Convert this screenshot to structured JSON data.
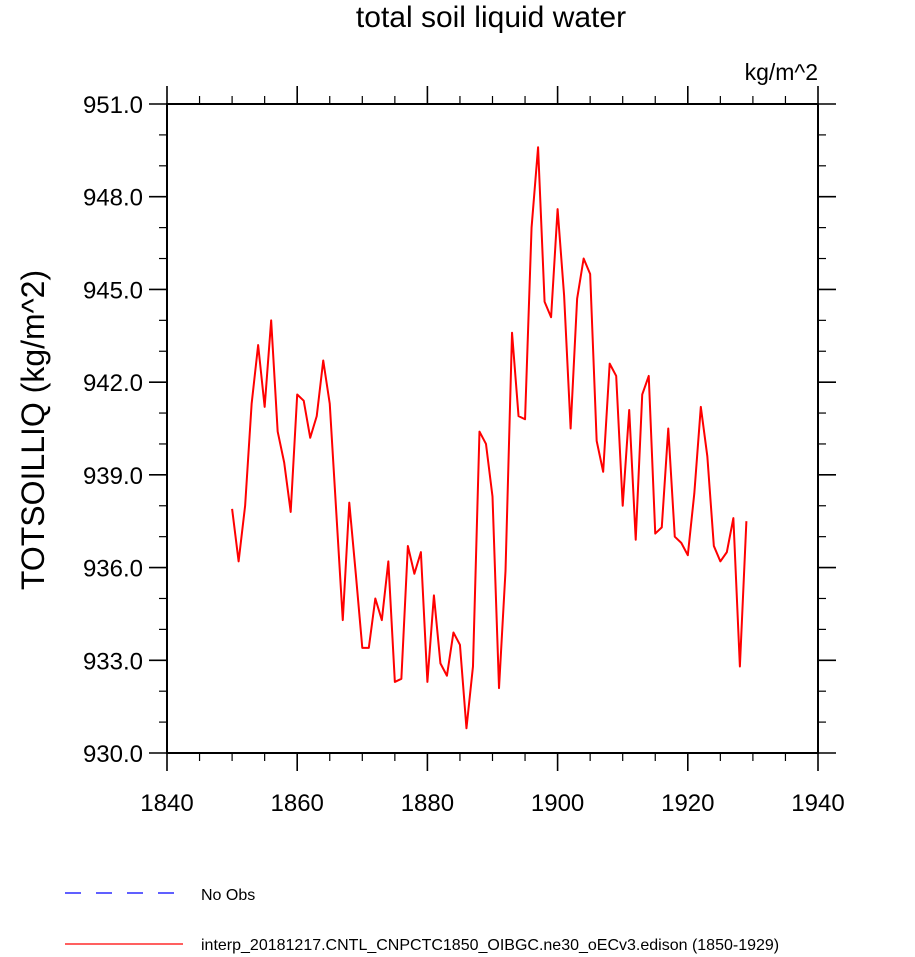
{
  "chart_data": {
    "type": "line",
    "title": "total soil liquid water",
    "units_label": "kg/m^2",
    "ylabel": "TOTSOILLIQ  (kg/m^2)",
    "xlabel": "",
    "xlim": [
      1840,
      1940
    ],
    "ylim": [
      930,
      951
    ],
    "xticks": [
      1840,
      1860,
      1880,
      1900,
      1920,
      1940
    ],
    "yticks": [
      930,
      933,
      936,
      939,
      942,
      945,
      948,
      951
    ],
    "ytick_labels": [
      "930.0",
      "933.0",
      "936.0",
      "939.0",
      "942.0",
      "945.0",
      "948.0",
      "951.0"
    ],
    "grid": false,
    "legend_position": "bottom-left",
    "series": [
      {
        "name": "interp_20181217.CNTL_CNPCTC1850_OIBGC.ne30_oECv3.edison (1850-1929)",
        "color": "#ff0000",
        "style": "solid",
        "x": [
          1850,
          1851,
          1852,
          1853,
          1854,
          1855,
          1856,
          1857,
          1858,
          1859,
          1860,
          1861,
          1862,
          1863,
          1864,
          1865,
          1866,
          1867,
          1868,
          1869,
          1870,
          1871,
          1872,
          1873,
          1874,
          1875,
          1876,
          1877,
          1878,
          1879,
          1880,
          1881,
          1882,
          1883,
          1884,
          1885,
          1886,
          1887,
          1888,
          1889,
          1890,
          1891,
          1892,
          1893,
          1894,
          1895,
          1896,
          1897,
          1898,
          1899,
          1900,
          1901,
          1902,
          1903,
          1904,
          1905,
          1906,
          1907,
          1908,
          1909,
          1910,
          1911,
          1912,
          1913,
          1914,
          1915,
          1916,
          1917,
          1918,
          1919,
          1920,
          1921,
          1922,
          1923,
          1924,
          1925,
          1926,
          1927,
          1928,
          1929
        ],
        "values": [
          937.9,
          936.2,
          938.0,
          941.3,
          943.2,
          941.2,
          944.0,
          940.4,
          939.4,
          937.8,
          941.6,
          941.4,
          940.2,
          940.9,
          942.7,
          941.3,
          937.8,
          934.3,
          938.1,
          935.8,
          933.4,
          933.4,
          935.0,
          934.3,
          936.2,
          932.3,
          932.4,
          936.7,
          935.8,
          936.5,
          932.3,
          935.1,
          932.9,
          932.5,
          933.9,
          933.5,
          930.8,
          932.8,
          940.4,
          940.0,
          938.3,
          932.1,
          935.9,
          943.6,
          940.9,
          940.8,
          947.0,
          949.6,
          944.6,
          944.1,
          947.6,
          944.8,
          940.5,
          944.7,
          946.0,
          945.5,
          940.1,
          939.1,
          942.6,
          942.2,
          938.0,
          941.1,
          936.9,
          941.6,
          942.2,
          937.1,
          937.3,
          940.5,
          937.0,
          936.8,
          936.4,
          938.4,
          941.2,
          939.6,
          936.7,
          936.2,
          936.5,
          937.6,
          932.8,
          937.5
        ]
      }
    ]
  },
  "legend": {
    "items": [
      {
        "label": "No Obs",
        "color": "#0000ff",
        "style": "dashed"
      },
      {
        "label": "interp_20181217.CNTL_CNPCTC1850_OIBGC.ne30_oECv3.edison (1850-1929)",
        "color": "#ff0000",
        "style": "solid"
      }
    ]
  }
}
